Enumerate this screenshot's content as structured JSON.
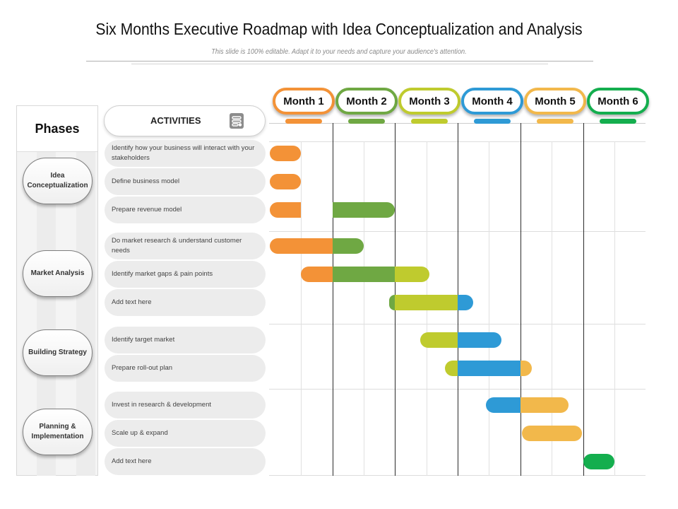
{
  "title": "Six Months Executive Roadmap with Idea Conceptualization and Analysis",
  "subtitle": "This slide is 100% editable. Adapt it to your needs and capture your audience's attention.",
  "phases_header": "Phases",
  "activities_header": "ACTIVITIES",
  "activities_icon": "roadmap-icon",
  "phases": [
    {
      "label": "Idea Conceptualization"
    },
    {
      "label": "Market Analysis"
    },
    {
      "label": "Building Strategy"
    },
    {
      "label": "Planning & Implementation"
    }
  ],
  "activities": [
    {
      "label": "Identify how your business will interact with your stakeholders",
      "phase": 0
    },
    {
      "label": "Define business model",
      "phase": 0
    },
    {
      "label": "Prepare revenue model",
      "phase": 0
    },
    {
      "label": "Do market research & understand customer needs",
      "phase": 1
    },
    {
      "label": "Identify market gaps & pain points",
      "phase": 1
    },
    {
      "label": "Add text here",
      "phase": 1
    },
    {
      "label": "Identify target market",
      "phase": 2
    },
    {
      "label": "Prepare roll-out plan",
      "phase": 2
    },
    {
      "label": "Invest in research & development",
      "phase": 3
    },
    {
      "label": "Scale up & expand",
      "phase": 3
    },
    {
      "label": "Add text here",
      "phase": 3
    }
  ],
  "months": [
    {
      "label": "Month 1",
      "color": "#F39237"
    },
    {
      "label": "Month 2",
      "color": "#6FA843"
    },
    {
      "label": "Month 3",
      "color": "#BFCB2E"
    },
    {
      "label": "Month 4",
      "color": "#2E9AD6"
    },
    {
      "label": "Month 5",
      "color": "#F2B84B"
    },
    {
      "label": "Month 6",
      "color": "#14AE4E"
    }
  ],
  "chart_data": {
    "type": "gantt",
    "time_unit": "month",
    "range": [
      0,
      6
    ],
    "tasks": [
      {
        "activity": 0,
        "segments": [
          {
            "month": 1,
            "start": 0.0,
            "end": 0.5
          }
        ]
      },
      {
        "activity": 1,
        "segments": [
          {
            "month": 1,
            "start": 0.0,
            "end": 0.5
          }
        ]
      },
      {
        "activity": 2,
        "segments": [
          {
            "month": 1,
            "start": 0.0,
            "end": 0.5
          },
          {
            "month": 2,
            "start": 1.0,
            "end": 2.0
          }
        ]
      },
      {
        "activity": 3,
        "segments": [
          {
            "month": 1,
            "start": 0.0,
            "end": 1.0
          },
          {
            "month": 2,
            "start": 1.0,
            "end": 1.5
          }
        ]
      },
      {
        "activity": 4,
        "segments": [
          {
            "month": 1,
            "start": 0.5,
            "end": 1.0
          },
          {
            "month": 2,
            "start": 1.0,
            "end": 2.0
          },
          {
            "month": 3,
            "start": 2.0,
            "end": 2.55
          }
        ]
      },
      {
        "activity": 5,
        "segments": [
          {
            "month": 2,
            "start": 1.9,
            "end": 2.0
          },
          {
            "month": 3,
            "start": 2.0,
            "end": 3.0
          },
          {
            "month": 4,
            "start": 3.0,
            "end": 3.25
          }
        ]
      },
      {
        "activity": 6,
        "segments": [
          {
            "month": 3,
            "start": 2.4,
            "end": 3.0
          },
          {
            "month": 4,
            "start": 3.0,
            "end": 3.7
          }
        ]
      },
      {
        "activity": 7,
        "segments": [
          {
            "month": 3,
            "start": 2.8,
            "end": 3.0
          },
          {
            "month": 4,
            "start": 3.0,
            "end": 4.0
          },
          {
            "month": 5,
            "start": 4.0,
            "end": 4.18
          }
        ]
      },
      {
        "activity": 8,
        "segments": [
          {
            "month": 4,
            "start": 3.45,
            "end": 4.0
          },
          {
            "month": 5,
            "start": 4.0,
            "end": 4.77
          }
        ]
      },
      {
        "activity": 9,
        "segments": [
          {
            "month": 5,
            "start": 4.02,
            "end": 4.98
          }
        ]
      },
      {
        "activity": 10,
        "segments": [
          {
            "month": 6,
            "start": 5.0,
            "end": 5.5
          }
        ]
      }
    ]
  }
}
